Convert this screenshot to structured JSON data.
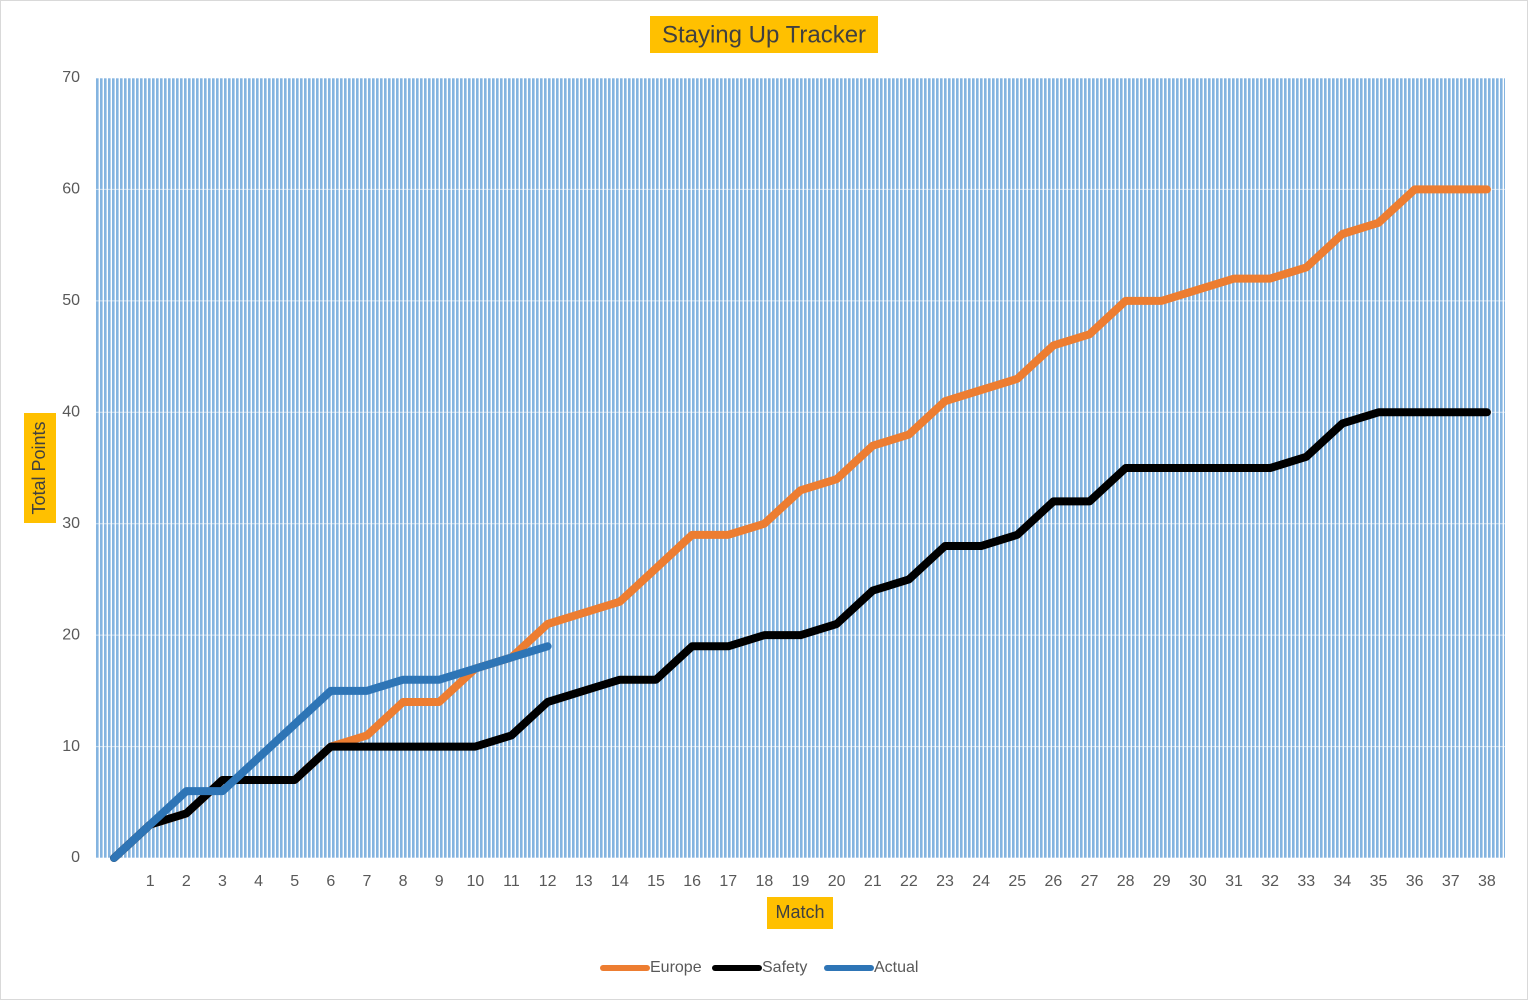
{
  "chart_data": {
    "type": "line",
    "title": "Staying Up Tracker",
    "x_label": "Match",
    "y_label": "Total Points",
    "categories": [
      null,
      1,
      2,
      3,
      4,
      5,
      6,
      7,
      8,
      9,
      10,
      11,
      12,
      13,
      14,
      15,
      16,
      17,
      18,
      19,
      20,
      21,
      22,
      23,
      24,
      25,
      26,
      27,
      28,
      29,
      30,
      31,
      32,
      33,
      34,
      35,
      36,
      37,
      38
    ],
    "series": [
      {
        "name": "Europe",
        "color": "#ed7d31",
        "values": [
          0,
          3,
          4,
          7,
          7,
          7,
          10,
          11,
          14,
          14,
          17,
          18,
          21,
          22,
          23,
          26,
          29,
          29,
          30,
          33,
          34,
          37,
          38,
          41,
          42,
          43,
          46,
          47,
          50,
          50,
          51,
          52,
          52,
          53,
          56,
          57,
          60,
          60,
          60
        ]
      },
      {
        "name": "Safety",
        "color": "#000000",
        "values": [
          0,
          3,
          4,
          7,
          7,
          7,
          10,
          10,
          10,
          10,
          10,
          11,
          14,
          15,
          16,
          16,
          19,
          19,
          20,
          20,
          21,
          24,
          25,
          28,
          28,
          29,
          32,
          32,
          35,
          35,
          35,
          35,
          35,
          36,
          39,
          40,
          40,
          40,
          40
        ]
      },
      {
        "name": "Actual",
        "color": "#2e75b6",
        "values": [
          0,
          3,
          6,
          6,
          9,
          12,
          15,
          15,
          16,
          16,
          17,
          18,
          19,
          null,
          null,
          null,
          null,
          null,
          null,
          null,
          null,
          null,
          null,
          null,
          null,
          null,
          null,
          null,
          null,
          null,
          null,
          null,
          null,
          null,
          null,
          null,
          null,
          null,
          null
        ]
      }
    ],
    "ylim": [
      0,
      70
    ],
    "yticks": [
      0,
      10,
      20,
      30,
      40,
      50,
      60,
      70
    ],
    "grid": true,
    "legend": "bottom"
  }
}
